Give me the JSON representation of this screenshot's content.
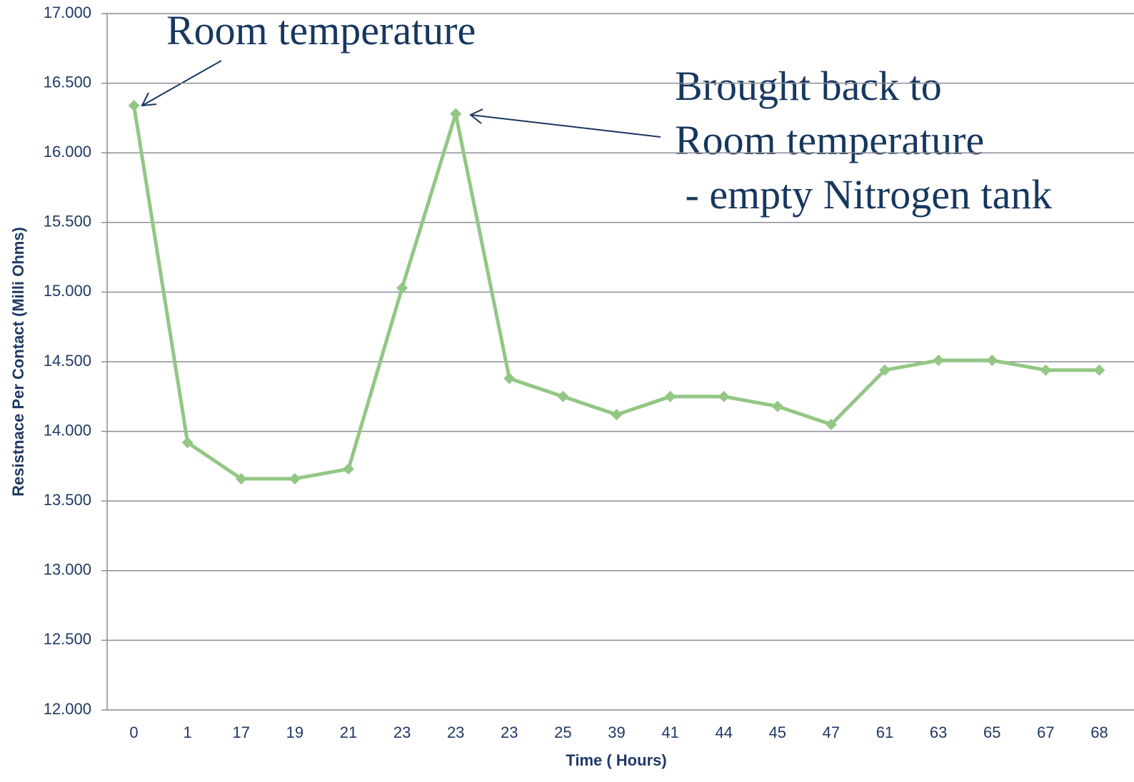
{
  "chart_data": {
    "type": "line",
    "x_label": "Time ( Hours)",
    "y_label": "Resistnace Per Contact (Milli Ohms)",
    "categories": [
      "0",
      "1",
      "17",
      "19",
      "21",
      "23",
      "23",
      "23",
      "25",
      "39",
      "41",
      "44",
      "45",
      "47",
      "61",
      "63",
      "65",
      "67",
      "68"
    ],
    "series": [
      {
        "color": "#92c784",
        "values": [
          16.34,
          13.92,
          13.66,
          13.66,
          13.73,
          15.03,
          16.28,
          14.38,
          14.25,
          14.12,
          14.25,
          14.25,
          14.18,
          14.05,
          14.44,
          14.51,
          14.51,
          14.44,
          14.44
        ]
      }
    ],
    "ylim": [
      12,
      17
    ],
    "yticks": [
      {
        "value": 12,
        "label": "12.000"
      },
      {
        "value": 12.5,
        "label": "12.500"
      },
      {
        "value": 13,
        "label": "13.000"
      },
      {
        "value": 13.5,
        "label": "13.500"
      },
      {
        "value": 14,
        "label": "14.000"
      },
      {
        "value": 14.5,
        "label": "14.500"
      },
      {
        "value": 15,
        "label": "15.000"
      },
      {
        "value": 15.5,
        "label": "15.500"
      },
      {
        "value": 16,
        "label": "16.000"
      },
      {
        "value": 16.5,
        "label": "16.500"
      },
      {
        "value": 17,
        "label": "17.000"
      }
    ],
    "grid": true,
    "annotations": [
      [
        "Room temperature"
      ],
      [
        "Brought back to",
        "Room temperature",
        " - empty Nitrogen tank"
      ]
    ]
  }
}
